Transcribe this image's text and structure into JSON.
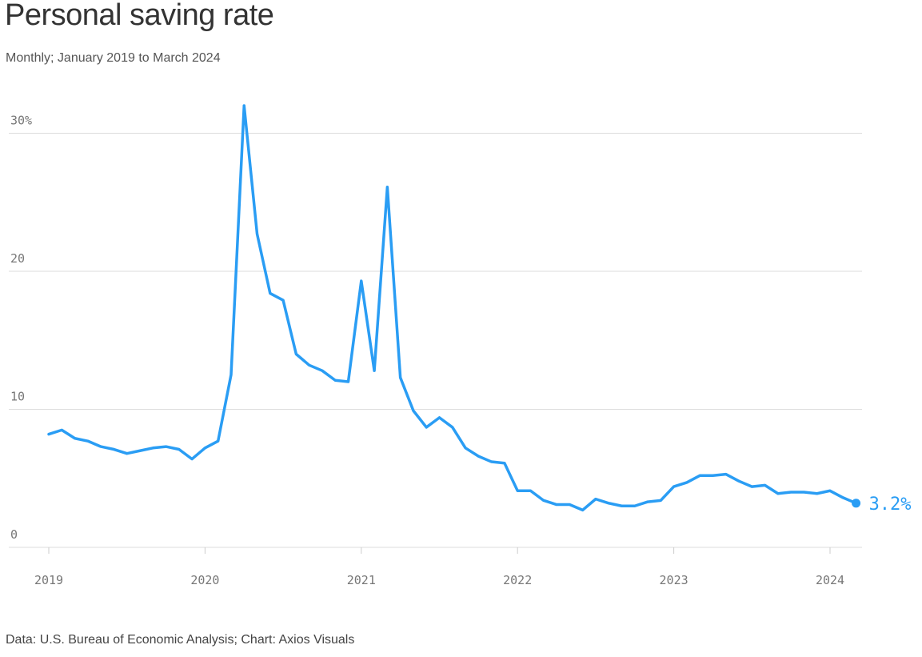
{
  "title": "Personal saving rate",
  "subtitle": "Monthly; January 2019 to March 2024",
  "source": "Data: U.S. Bureau of Economic Analysis; Chart: Axios Visuals",
  "chart_data": {
    "type": "line",
    "title": "Personal saving rate",
    "subtitle": "Monthly; January 2019 to March 2024",
    "xlabel": "",
    "ylabel": "",
    "ylim": [
      0,
      30
    ],
    "y_ticks": [
      {
        "value": 0,
        "label": "0"
      },
      {
        "value": 10,
        "label": "10"
      },
      {
        "value": 20,
        "label": "20"
      },
      {
        "value": 30,
        "label": "30%"
      }
    ],
    "x_ticks": [
      {
        "value": "2019-01",
        "label": "2019"
      },
      {
        "value": "2020-01",
        "label": "2020"
      },
      {
        "value": "2021-01",
        "label": "2021"
      },
      {
        "value": "2022-01",
        "label": "2022"
      },
      {
        "value": "2023-01",
        "label": "2023"
      },
      {
        "value": "2024-01",
        "label": "2024"
      }
    ],
    "grid": true,
    "line_color": "#2a9df4",
    "series": [
      {
        "values": [
          {
            "x": "2019-01",
            "y": 8.2
          },
          {
            "x": "2019-02",
            "y": 8.5
          },
          {
            "x": "2019-03",
            "y": 7.9
          },
          {
            "x": "2019-04",
            "y": 7.7
          },
          {
            "x": "2019-05",
            "y": 7.3
          },
          {
            "x": "2019-06",
            "y": 7.1
          },
          {
            "x": "2019-07",
            "y": 6.8
          },
          {
            "x": "2019-08",
            "y": 7.0
          },
          {
            "x": "2019-09",
            "y": 7.2
          },
          {
            "x": "2019-10",
            "y": 7.3
          },
          {
            "x": "2019-11",
            "y": 7.1
          },
          {
            "x": "2019-12",
            "y": 6.4
          },
          {
            "x": "2020-01",
            "y": 7.2
          },
          {
            "x": "2020-02",
            "y": 7.7
          },
          {
            "x": "2020-03",
            "y": 12.5
          },
          {
            "x": "2020-04",
            "y": 32.0
          },
          {
            "x": "2020-05",
            "y": 22.7
          },
          {
            "x": "2020-06",
            "y": 18.4
          },
          {
            "x": "2020-07",
            "y": 17.9
          },
          {
            "x": "2020-08",
            "y": 14.0
          },
          {
            "x": "2020-09",
            "y": 13.2
          },
          {
            "x": "2020-10",
            "y": 12.8
          },
          {
            "x": "2020-11",
            "y": 12.1
          },
          {
            "x": "2020-12",
            "y": 12.0
          },
          {
            "x": "2021-01",
            "y": 19.3
          },
          {
            "x": "2021-02",
            "y": 12.8
          },
          {
            "x": "2021-03",
            "y": 26.1
          },
          {
            "x": "2021-04",
            "y": 12.3
          },
          {
            "x": "2021-05",
            "y": 9.9
          },
          {
            "x": "2021-06",
            "y": 8.7
          },
          {
            "x": "2021-07",
            "y": 9.4
          },
          {
            "x": "2021-08",
            "y": 8.7
          },
          {
            "x": "2021-09",
            "y": 7.2
          },
          {
            "x": "2021-10",
            "y": 6.6
          },
          {
            "x": "2021-11",
            "y": 6.2
          },
          {
            "x": "2021-12",
            "y": 6.1
          },
          {
            "x": "2022-01",
            "y": 4.1
          },
          {
            "x": "2022-02",
            "y": 4.1
          },
          {
            "x": "2022-03",
            "y": 3.4
          },
          {
            "x": "2022-04",
            "y": 3.1
          },
          {
            "x": "2022-05",
            "y": 3.1
          },
          {
            "x": "2022-06",
            "y": 2.7
          },
          {
            "x": "2022-07",
            "y": 3.5
          },
          {
            "x": "2022-08",
            "y": 3.2
          },
          {
            "x": "2022-09",
            "y": 3.0
          },
          {
            "x": "2022-10",
            "y": 3.0
          },
          {
            "x": "2022-11",
            "y": 3.3
          },
          {
            "x": "2022-12",
            "y": 3.4
          },
          {
            "x": "2023-01",
            "y": 4.4
          },
          {
            "x": "2023-02",
            "y": 4.7
          },
          {
            "x": "2023-03",
            "y": 5.2
          },
          {
            "x": "2023-04",
            "y": 5.2
          },
          {
            "x": "2023-05",
            "y": 5.3
          },
          {
            "x": "2023-06",
            "y": 4.8
          },
          {
            "x": "2023-07",
            "y": 4.4
          },
          {
            "x": "2023-08",
            "y": 4.5
          },
          {
            "x": "2023-09",
            "y": 3.9
          },
          {
            "x": "2023-10",
            "y": 4.0
          },
          {
            "x": "2023-11",
            "y": 4.0
          },
          {
            "x": "2023-12",
            "y": 3.9
          },
          {
            "x": "2024-01",
            "y": 4.1
          },
          {
            "x": "2024-02",
            "y": 3.6
          },
          {
            "x": "2024-03",
            "y": 3.2
          }
        ]
      }
    ],
    "end_label": "3.2%"
  }
}
